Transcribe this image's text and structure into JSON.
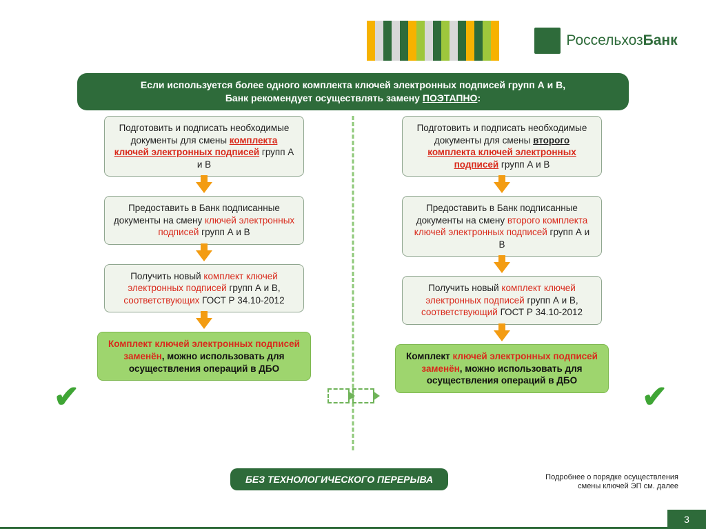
{
  "header": {
    "brand_1": "Россельхоз",
    "brand_2": "Банк",
    "stripe_colors": [
      "#f6b200",
      "#d8d8d8",
      "#2e6b3a",
      "#d8d8d8",
      "#2e6b3a",
      "#f6b200",
      "#9ec73c",
      "#d8d8d8",
      "#2e6b3a",
      "#9ec73c",
      "#d8d8d8",
      "#2e6b3a",
      "#f6b200",
      "#2e6b3a",
      "#9ec73c",
      "#f6b200"
    ]
  },
  "banner": {
    "line1": "Если используется более одного комплекта ключей электронных подписей групп А и В,",
    "line2_a": "Банк рекомендует осуществлять замену ",
    "line2_b": "ПОЭТАПНО",
    "line2_c": ":"
  },
  "left": {
    "b1_a": "Подготовить и подписать необходимые документы для смены ",
    "b1_b": "комплекта ключей электронных подписей",
    "b1_c": " групп А и В",
    "b2_a": "Предоставить в Банк подписанные документы на смену ",
    "b2_b": "ключей электронных подписей",
    "b2_c": " групп А и В",
    "b3_a": "Получить новый ",
    "b3_b": "комплект ключей электронных подписей",
    "b3_c": " групп А и В, ",
    "b3_d": "соответствующих",
    "b3_e": " ГОСТ Р 34.10-2012",
    "b4_a": "Комплект ключей электронных подписей заменён",
    "b4_b": ", можно использовать для осуществления операций в ДБО"
  },
  "right": {
    "b1_a": "Подготовить и подписать необходимые документы для смены ",
    "b1_b": "второго",
    "b1_c": " ",
    "b1_d": "комплекта ключей электронных подписей",
    "b1_e": " групп А и В",
    "b2_a": "Предоставить в Банк подписанные документы на смену ",
    "b2_b": "второго комплекта ключей электронных подписей",
    "b2_c": " групп А и В",
    "b3_a": "Получить новый ",
    "b3_b": "комплект ключей электронных подписей",
    "b3_c": "  групп А и В, ",
    "b3_d": "соответствующий",
    "b3_e": " ГОСТ Р 34.10-2012",
    "b4_a": "Комплект ",
    "b4_b": "ключей электронных подписей заменён",
    "b4_c": ", можно использовать для осуществления операций в ДБО"
  },
  "footer": {
    "pill": "БЕЗ ТЕХНОЛОГИЧЕСКОГО ПЕРЕРЫВА",
    "note_1": "Подробнее о порядке осуществления",
    "note_2": "смены ключей ЭП см. далее",
    "page": "3"
  },
  "colors": {
    "brand_green": "#2e6b3a",
    "box_bg": "#f0f4ec",
    "final_bg": "#9ed56e",
    "arrow": "#f39c12",
    "red": "#d92a1c",
    "dash": "#8fc97a"
  }
}
